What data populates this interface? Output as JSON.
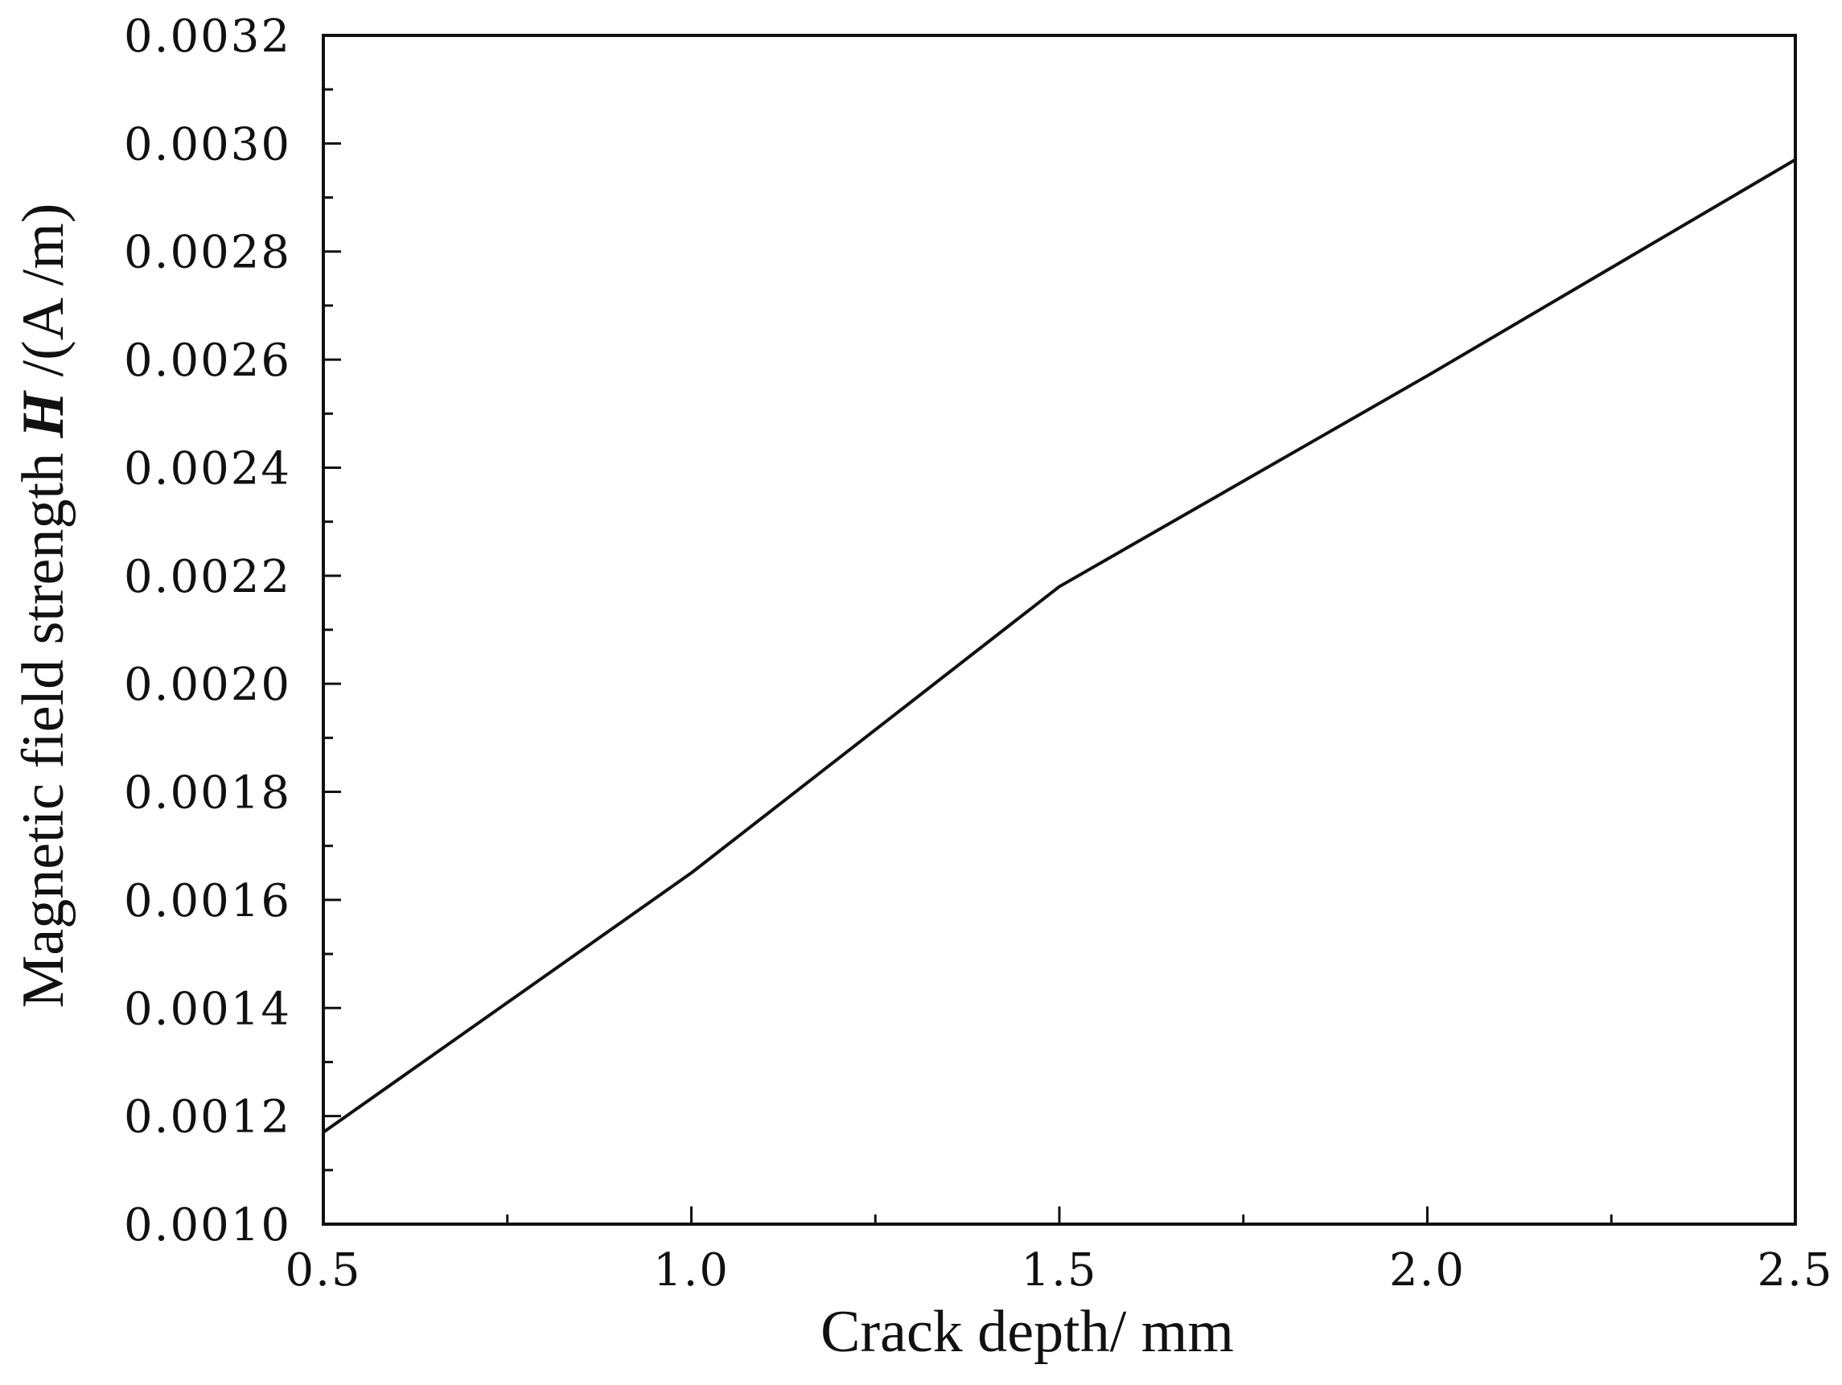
{
  "chart_data": {
    "type": "line",
    "title": "",
    "xlabel": "Crack depth/ mm",
    "ylabel_parts": [
      "Magnetic field strength ",
      "H",
      " /(A /m)"
    ],
    "xlim": [
      0.5,
      2.5
    ],
    "ylim": [
      0.001,
      0.0032
    ],
    "x_major_ticks": [
      0.5,
      1.0,
      1.5,
      2.0,
      2.5
    ],
    "x_tick_labels": [
      "0.5",
      "1.0",
      "1.5",
      "2.0",
      "2.5"
    ],
    "x_minor_ticks": [
      0.75,
      1.25,
      1.75,
      2.25
    ],
    "y_major_ticks": [
      0.001,
      0.0012,
      0.0014,
      0.0016,
      0.0018,
      0.002,
      0.0022,
      0.0024,
      0.0026,
      0.0028,
      0.003,
      0.0032
    ],
    "y_tick_labels": [
      "0.0010",
      "0.0012",
      "0.0014",
      "0.0016",
      "0.0018",
      "0.0020",
      "0.0022",
      "0.0024",
      "0.0026",
      "0.0028",
      "0.0030",
      "0.0032"
    ],
    "y_minor_ticks": [
      0.0011,
      0.0013,
      0.0015,
      0.0017,
      0.0019,
      0.0021,
      0.0023,
      0.0025,
      0.0027,
      0.0029,
      0.0031
    ],
    "grid": false,
    "legend": "none",
    "series": [
      {
        "color": "#111111",
        "x": [
          0.5,
          1.0,
          1.5,
          2.0,
          2.5
        ],
        "y": [
          0.00117,
          0.00165,
          0.00218,
          0.00257,
          0.00297
        ]
      }
    ]
  }
}
